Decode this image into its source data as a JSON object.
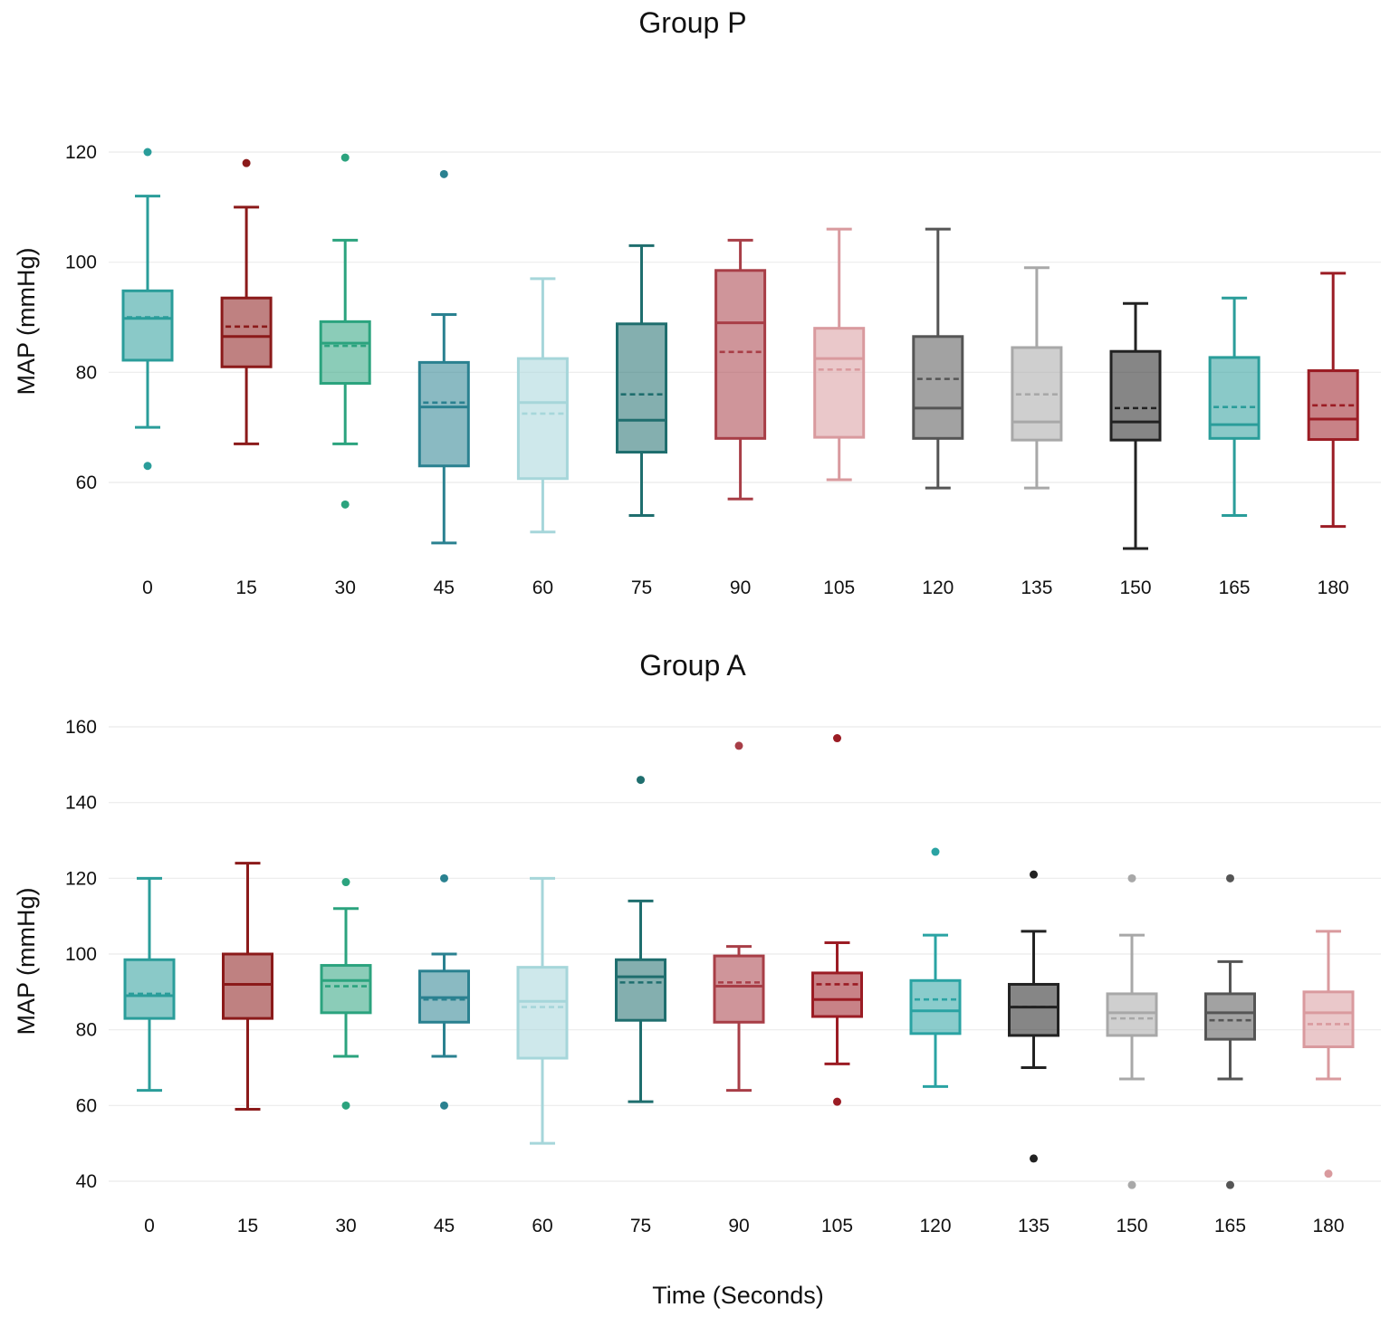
{
  "x_axis_label": "Time (Seconds)",
  "chart_data": [
    {
      "type": "box",
      "title": "Group P",
      "xlabel": "Time (Seconds)",
      "ylabel": "MAP (mmHg)",
      "ylim": [
        40,
        120
      ],
      "yticks": [
        60,
        80,
        100,
        120
      ],
      "categories": [
        "0",
        "15",
        "30",
        "45",
        "60",
        "75",
        "90",
        "105",
        "120",
        "135",
        "150",
        "165",
        "180"
      ],
      "colors": [
        "#2a9d9a",
        "#8b1a1a",
        "#2ba37e",
        "#2a8190",
        "#a6d6da",
        "#1f6e6e",
        "#a83e47",
        "#d99a9e",
        "#555555",
        "#a8a8a8",
        "#222222",
        "#2a9d9a",
        "#9b1c24"
      ],
      "boxes": [
        {
          "x": "0",
          "whislo": 70,
          "q1": 82.2,
          "med": 89.8,
          "q3": 94.8,
          "whishi": 112,
          "mean": 90,
          "fliers": [
            120,
            63
          ]
        },
        {
          "x": "15",
          "whislo": 67,
          "q1": 81,
          "med": 86.5,
          "q3": 93.5,
          "whishi": 110,
          "mean": 88.3,
          "fliers": [
            118
          ]
        },
        {
          "x": "30",
          "whislo": 67,
          "q1": 78,
          "med": 85.3,
          "q3": 89.2,
          "whishi": 104,
          "mean": 84.8,
          "fliers": [
            119,
            56
          ]
        },
        {
          "x": "45",
          "whislo": 49,
          "q1": 63,
          "med": 73.7,
          "q3": 81.8,
          "whishi": 90.5,
          "mean": 74.5,
          "fliers": [
            116
          ]
        },
        {
          "x": "60",
          "whislo": 51,
          "q1": 60.7,
          "med": 74.5,
          "q3": 82.5,
          "whishi": 97,
          "mean": 72.5,
          "fliers": []
        },
        {
          "x": "75",
          "whislo": 54,
          "q1": 65.5,
          "med": 71.3,
          "q3": 88.8,
          "whishi": 103,
          "mean": 76,
          "fliers": []
        },
        {
          "x": "90",
          "whislo": 57,
          "q1": 68,
          "med": 89,
          "q3": 98.5,
          "whishi": 104,
          "mean": 83.7,
          "fliers": []
        },
        {
          "x": "105",
          "whislo": 60.5,
          "q1": 68.2,
          "med": 82.5,
          "q3": 88,
          "whishi": 106,
          "mean": 80.5,
          "fliers": []
        },
        {
          "x": "120",
          "whislo": 59,
          "q1": 68,
          "med": 73.5,
          "q3": 86.5,
          "whishi": 106,
          "mean": 78.8,
          "fliers": []
        },
        {
          "x": "135",
          "whislo": 59,
          "q1": 67.7,
          "med": 71,
          "q3": 84.5,
          "whishi": 99,
          "mean": 76,
          "fliers": []
        },
        {
          "x": "150",
          "whislo": 48,
          "q1": 67.7,
          "med": 71,
          "q3": 83.8,
          "whishi": 92.5,
          "mean": 73.5,
          "fliers": []
        },
        {
          "x": "165",
          "whislo": 54,
          "q1": 68,
          "med": 70.5,
          "q3": 82.7,
          "whishi": 93.5,
          "mean": 73.7,
          "fliers": []
        },
        {
          "x": "180",
          "whislo": 52,
          "q1": 67.8,
          "med": 71.5,
          "q3": 80.3,
          "whishi": 98,
          "mean": 74,
          "fliers": []
        }
      ]
    },
    {
      "type": "box",
      "title": "Group A",
      "xlabel": "Time (Seconds)",
      "ylabel": "MAP (mmHg)",
      "ylim": [
        38,
        160
      ],
      "yticks": [
        40,
        60,
        80,
        100,
        120,
        140,
        160
      ],
      "categories": [
        "0",
        "15",
        "30",
        "45",
        "60",
        "75",
        "90",
        "105",
        "120",
        "135",
        "150",
        "165",
        "180"
      ],
      "colors": [
        "#2a9d9a",
        "#8b1a1a",
        "#2ba37e",
        "#2a8190",
        "#a6d6da",
        "#1f6e6e",
        "#a83e47",
        "#9b1c24",
        "#2aa3a3",
        "#222222",
        "#a8a8a8",
        "#555555",
        "#d99a9e"
      ],
      "boxes": [
        {
          "x": "0",
          "whislo": 64,
          "q1": 83,
          "med": 89,
          "q3": 98.5,
          "whishi": 120,
          "mean": 89.5,
          "fliers": []
        },
        {
          "x": "15",
          "whislo": 59,
          "q1": 83,
          "med": 92,
          "q3": 100,
          "whishi": 124,
          "mean": 92,
          "fliers": []
        },
        {
          "x": "30",
          "whislo": 73,
          "q1": 84.5,
          "med": 93,
          "q3": 97,
          "whishi": 112,
          "mean": 91.5,
          "fliers": [
            119,
            60
          ]
        },
        {
          "x": "45",
          "whislo": 73,
          "q1": 82,
          "med": 88.5,
          "q3": 95.5,
          "whishi": 100,
          "mean": 88,
          "fliers": [
            120,
            60
          ]
        },
        {
          "x": "60",
          "whislo": 50,
          "q1": 72.5,
          "med": 87.5,
          "q3": 96.5,
          "whishi": 120,
          "mean": 86,
          "fliers": []
        },
        {
          "x": "75",
          "whislo": 61,
          "q1": 82.5,
          "med": 94,
          "q3": 98.5,
          "whishi": 114,
          "mean": 92.5,
          "fliers": [
            146
          ]
        },
        {
          "x": "90",
          "whislo": 64,
          "q1": 82,
          "med": 91.5,
          "q3": 99.5,
          "whishi": 102,
          "mean": 92.5,
          "fliers": [
            155
          ]
        },
        {
          "x": "105",
          "whislo": 71,
          "q1": 83.5,
          "med": 88,
          "q3": 95,
          "whishi": 103,
          "mean": 92,
          "fliers": [
            157,
            61
          ]
        },
        {
          "x": "120",
          "whislo": 65,
          "q1": 79,
          "med": 85,
          "q3": 93,
          "whishi": 105,
          "mean": 88,
          "fliers": [
            127
          ]
        },
        {
          "x": "135",
          "whislo": 70,
          "q1": 78.5,
          "med": 86,
          "q3": 92,
          "whishi": 106,
          "mean": 86,
          "fliers": [
            121,
            46
          ]
        },
        {
          "x": "150",
          "whislo": 67,
          "q1": 78.5,
          "med": 84.5,
          "q3": 89.5,
          "whishi": 105,
          "mean": 83,
          "fliers": [
            120,
            39
          ]
        },
        {
          "x": "165",
          "whislo": 67,
          "q1": 77.5,
          "med": 84.5,
          "q3": 89.5,
          "whishi": 98,
          "mean": 82.5,
          "fliers": [
            120,
            39
          ]
        },
        {
          "x": "180",
          "whislo": 67,
          "q1": 75.5,
          "med": 84.5,
          "q3": 90,
          "whishi": 106,
          "mean": 81.5,
          "fliers": [
            42
          ]
        }
      ]
    }
  ]
}
